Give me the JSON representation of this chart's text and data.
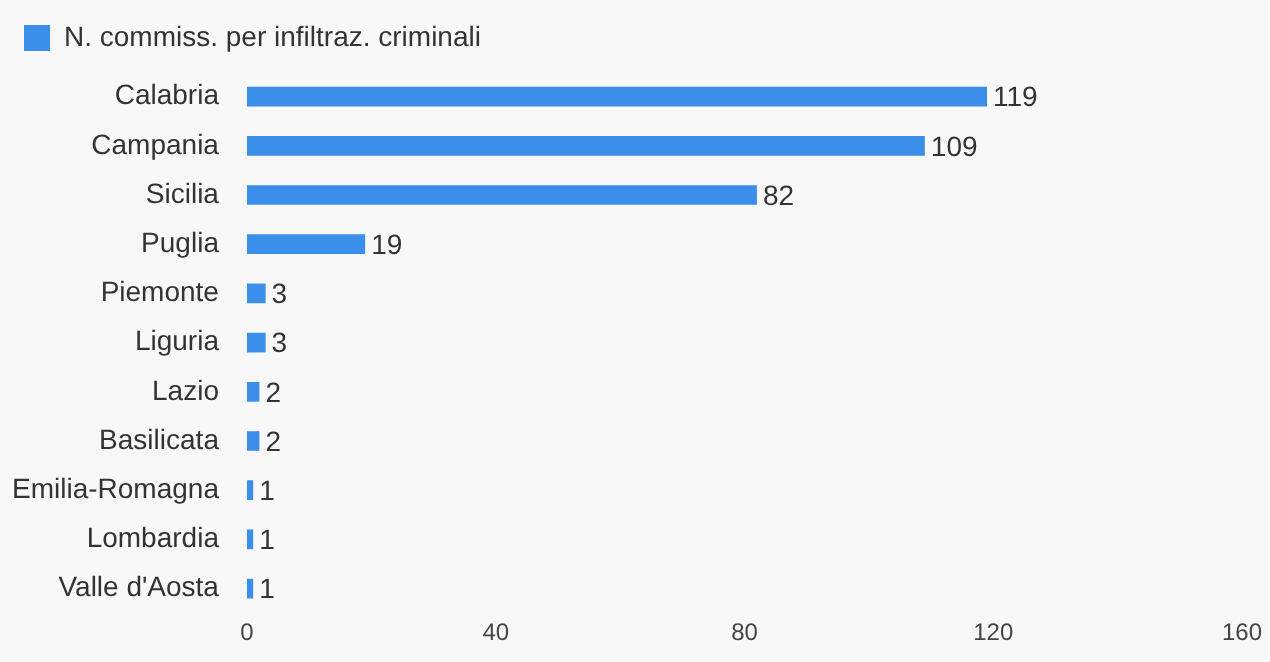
{
  "chart_data": {
    "type": "bar",
    "orientation": "horizontal",
    "categories": [
      "Calabria",
      "Campania",
      "Sicilia",
      "Puglia",
      "Piemonte",
      "Liguria",
      "Lazio",
      "Basilicata",
      "Emilia-Romagna",
      "Lombardia",
      "Valle d'Aosta"
    ],
    "series": [
      {
        "name": "N. commiss. per infiltraz. criminali",
        "color": "#3b8eea",
        "values": [
          119,
          109,
          82,
          19,
          3,
          3,
          2,
          2,
          1,
          1,
          1
        ]
      }
    ],
    "xlim": [
      0,
      160
    ],
    "xticks": [
      0,
      40,
      80,
      120,
      160
    ],
    "grid": false,
    "legend": "top left",
    "data_labels": true
  }
}
